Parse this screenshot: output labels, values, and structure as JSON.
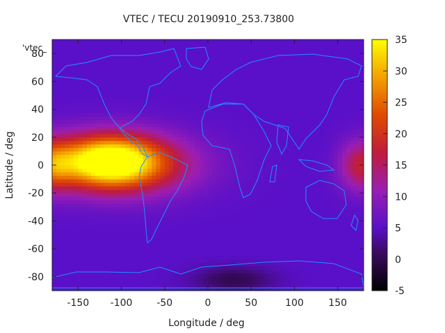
{
  "chart_data": {
    "type": "heatmap",
    "title": "VTEC / TECU 20190910_253.73800",
    "xlabel": "Longitude / deg",
    "ylabel": "Latitude / deg",
    "xlim": [
      -180,
      180
    ],
    "ylim": [
      -90,
      90
    ],
    "x_ticks": [
      -150,
      -100,
      -50,
      0,
      50,
      100,
      150
    ],
    "y_ticks": [
      -80,
      -60,
      -40,
      -20,
      0,
      20,
      40,
      60,
      80
    ],
    "colorbar": {
      "range": [
        -5,
        35
      ],
      "ticks": [
        -5,
        0,
        5,
        10,
        15,
        20,
        25,
        30,
        35
      ],
      "colormap": "gnuplot pm3d (black-purple-red-yellow)"
    },
    "key_label": "'vtec_",
    "grid": false,
    "field_summary": [
      {
        "region": "Americas / east Pacific equatorial crest",
        "lon_center": -115,
        "lat_center": 3,
        "peak_vtec": 33
      },
      {
        "region": "Western Pacific dateline edge",
        "lon_center": 178,
        "lat_center": 0,
        "peak_vtec": 18
      },
      {
        "region": "Background mid-latitudes",
        "vtec": 5
      },
      {
        "region": "Antarctic night minimum",
        "lon_center": 30,
        "lat_center": -82,
        "min_vtec": 0
      }
    ]
  }
}
